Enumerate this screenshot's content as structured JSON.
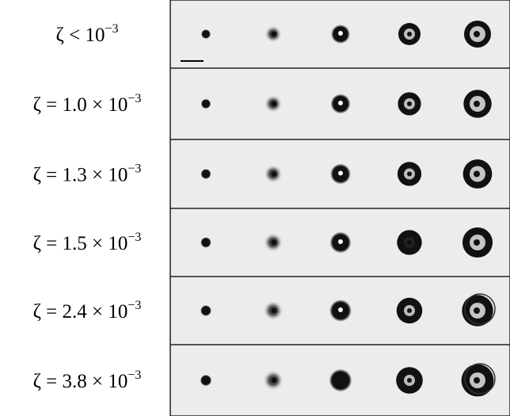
{
  "rows": [
    {
      "label": "ζ < 10",
      "exponent": "−3"
    },
    {
      "label": "ζ = 1.0 × 10",
      "exponent": "−3"
    },
    {
      "label": "ζ = 1.3 × 10",
      "exponent": "−3"
    },
    {
      "label": "ζ = 1.5 × 10",
      "exponent": "−3"
    },
    {
      "label": "ζ = 2.4 × 10",
      "exponent": "−3"
    },
    {
      "label": "ζ = 3.8 × 10",
      "exponent": "−3"
    }
  ]
}
